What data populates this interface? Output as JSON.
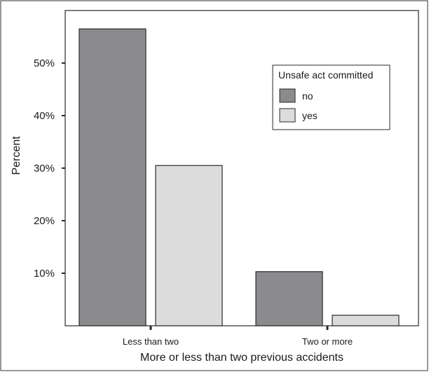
{
  "chart_data": {
    "type": "bar",
    "categories": [
      "Less than two",
      "Two or more"
    ],
    "series": [
      {
        "name": "no",
        "values": [
          56.5,
          10.3
        ],
        "color": "#8a8a8f"
      },
      {
        "name": "yes",
        "values": [
          30.5,
          2.0
        ],
        "color": "#dcdcdc"
      }
    ],
    "ylim": [
      0,
      60
    ],
    "yticks": [
      10,
      20,
      30,
      40,
      50
    ],
    "ytick_labels": [
      "10%",
      "20%",
      "30%",
      "40%",
      "50%"
    ],
    "xlabel": "More or less than two previous accidents",
    "ylabel": "Percent",
    "legend": {
      "title": "Unsafe act committed",
      "position": "top-right"
    },
    "grid": false
  }
}
